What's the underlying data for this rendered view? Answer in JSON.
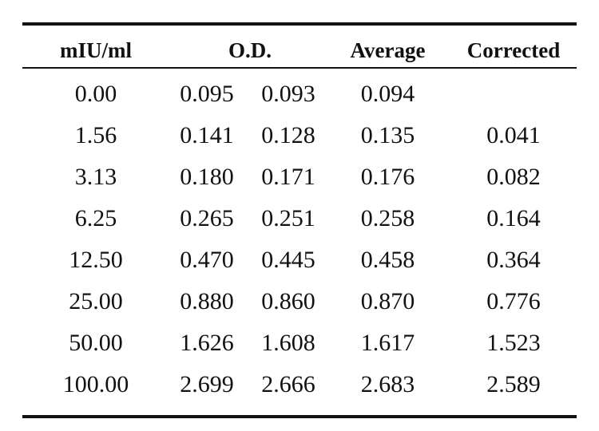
{
  "table": {
    "headers": {
      "concentration": "mIU/ml",
      "od": "O.D.",
      "average": "Average",
      "corrected": "Corrected"
    },
    "rows": [
      {
        "concentration": "0.00",
        "od1": "0.095",
        "od2": "0.093",
        "average": "0.094",
        "corrected": ""
      },
      {
        "concentration": "1.56",
        "od1": "0.141",
        "od2": "0.128",
        "average": "0.135",
        "corrected": "0.041"
      },
      {
        "concentration": "3.13",
        "od1": "0.180",
        "od2": "0.171",
        "average": "0.176",
        "corrected": "0.082"
      },
      {
        "concentration": "6.25",
        "od1": "0.265",
        "od2": "0.251",
        "average": "0.258",
        "corrected": "0.164"
      },
      {
        "concentration": "12.50",
        "od1": "0.470",
        "od2": "0.445",
        "average": "0.458",
        "corrected": "0.364"
      },
      {
        "concentration": "25.00",
        "od1": "0.880",
        "od2": "0.860",
        "average": "0.870",
        "corrected": "0.776"
      },
      {
        "concentration": "50.00",
        "od1": "1.626",
        "od2": "1.608",
        "average": "1.617",
        "corrected": "1.523"
      },
      {
        "concentration": "100.00",
        "od1": "2.699",
        "od2": "2.666",
        "average": "2.683",
        "corrected": "2.589"
      }
    ]
  }
}
